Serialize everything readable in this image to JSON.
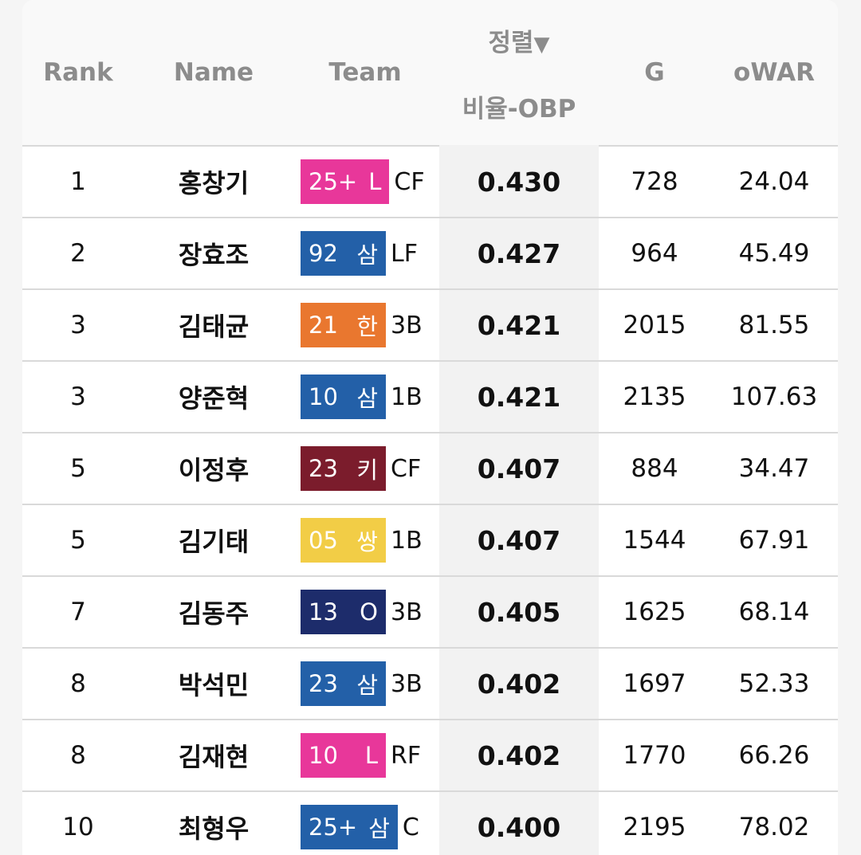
{
  "header": {
    "rank": "Rank",
    "name": "Name",
    "team": "Team",
    "sort_label": "정렬",
    "sort_arrow": "▼",
    "stat": "비율-OBP",
    "g": "G",
    "owar": "oWAR"
  },
  "rows": [
    {
      "rank": "1",
      "name": "홍창기",
      "year": "25+",
      "team": "L",
      "team_color": "#e8379a",
      "pos": "CF",
      "obp": "0.430",
      "g": "728",
      "owar": "24.04"
    },
    {
      "rank": "2",
      "name": "장효조",
      "year": "92",
      "team": "삼",
      "team_color": "#2360a8",
      "pos": "LF",
      "obp": "0.427",
      "g": "964",
      "owar": "45.49"
    },
    {
      "rank": "3",
      "name": "김태균",
      "year": "21",
      "team": "한",
      "team_color": "#e9772f",
      "pos": "3B",
      "obp": "0.421",
      "g": "2015",
      "owar": "81.55"
    },
    {
      "rank": "3",
      "name": "양준혁",
      "year": "10",
      "team": "삼",
      "team_color": "#2360a8",
      "pos": "1B",
      "obp": "0.421",
      "g": "2135",
      "owar": "107.63"
    },
    {
      "rank": "5",
      "name": "이정후",
      "year": "23",
      "team": "키",
      "team_color": "#7b1c2c",
      "pos": "CF",
      "obp": "0.407",
      "g": "884",
      "owar": "34.47"
    },
    {
      "rank": "5",
      "name": "김기태",
      "year": "05",
      "team": "쌍",
      "team_color": "#f2cd46",
      "pos": "1B",
      "obp": "0.407",
      "g": "1544",
      "owar": "67.91"
    },
    {
      "rank": "7",
      "name": "김동주",
      "year": "13",
      "team": "O",
      "team_color": "#1d2c6b",
      "pos": "3B",
      "obp": "0.405",
      "g": "1625",
      "owar": "68.14"
    },
    {
      "rank": "8",
      "name": "박석민",
      "year": "23",
      "team": "삼",
      "team_color": "#2360a8",
      "pos": "3B",
      "obp": "0.402",
      "g": "1697",
      "owar": "52.33"
    },
    {
      "rank": "8",
      "name": "김재현",
      "year": "10",
      "team": "L",
      "team_color": "#e8379a",
      "pos": "RF",
      "obp": "0.402",
      "g": "1770",
      "owar": "66.26"
    },
    {
      "rank": "10",
      "name": "최형우",
      "year": "25+",
      "team": "삼",
      "team_color": "#2360a8",
      "pos": "C",
      "obp": "0.400",
      "g": "2195",
      "owar": "78.02"
    }
  ]
}
